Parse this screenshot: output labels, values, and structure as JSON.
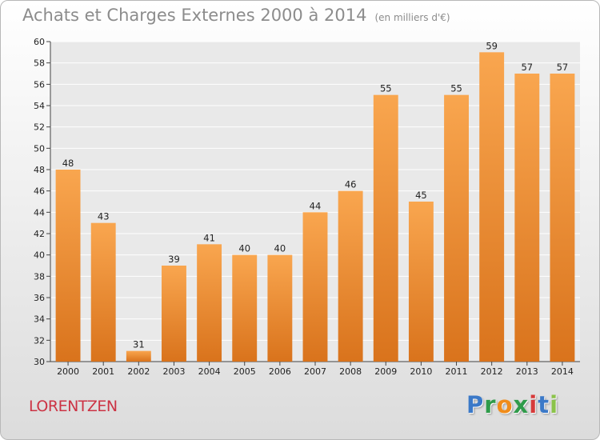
{
  "header": {
    "title": "Achats et Charges Externes 2000 à 2014",
    "unit": "(en milliers d'€)"
  },
  "footer": {
    "place": "LORENTZEN",
    "logo_letters": [
      "P",
      "r",
      "o",
      "x",
      "i",
      "t",
      "i"
    ]
  },
  "colors": {
    "bar_top": "#f9a64f",
    "bar_bottom": "#d9731c",
    "logo": [
      "#3b79c8",
      "#2f9b4a",
      "#f08c1a",
      "#2f9b4a",
      "#d63a3a",
      "#3b79c8",
      "#8bc34a"
    ]
  },
  "chart_data": {
    "type": "bar",
    "categories": [
      "2000",
      "2001",
      "2002",
      "2003",
      "2004",
      "2005",
      "2006",
      "2007",
      "2008",
      "2009",
      "2010",
      "2011",
      "2012",
      "2013",
      "2014"
    ],
    "values": [
      48,
      43,
      31,
      39,
      41,
      40,
      40,
      44,
      46,
      55,
      45,
      55,
      59,
      57,
      57
    ],
    "ylim": [
      30,
      60
    ],
    "yticks": [
      30,
      32,
      34,
      36,
      38,
      40,
      42,
      44,
      46,
      48,
      50,
      52,
      54,
      56,
      58,
      60
    ],
    "grid": true,
    "xlabel": "",
    "ylabel": ""
  }
}
